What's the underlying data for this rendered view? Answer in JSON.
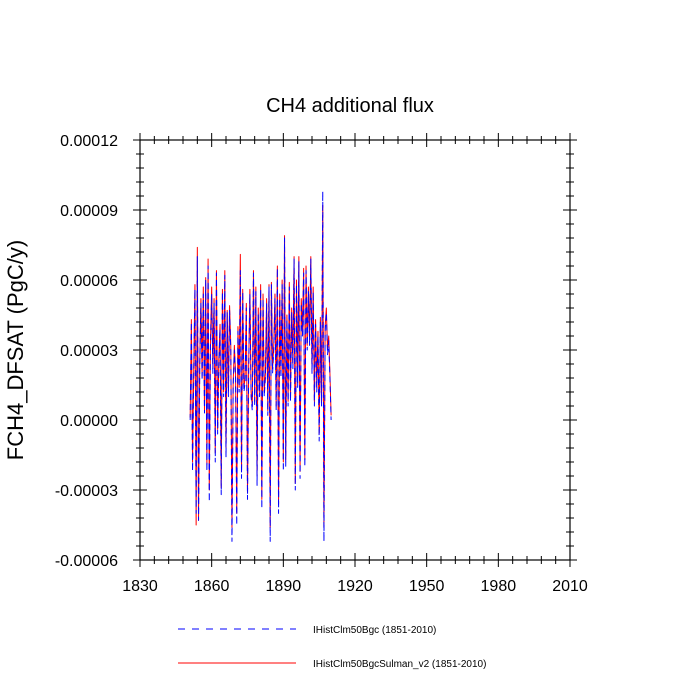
{
  "chart_data": {
    "type": "line",
    "title": "CH4 additional flux",
    "ylabel": "FCH4_DFSAT  (PgC/y)",
    "xlabel": "",
    "xlim": [
      1830,
      2010
    ],
    "ylim": [
      -6e-05,
      0.00012
    ],
    "x_ticks": [
      1830,
      1860,
      1890,
      1920,
      1950,
      1980,
      2010
    ],
    "y_ticks": [
      -6e-05,
      -3e-05,
      0.0,
      3e-05,
      6e-05,
      9e-05,
      0.00012
    ],
    "x_tick_labels": [
      "1830",
      "1860",
      "1890",
      "1920",
      "1950",
      "1980",
      "2010"
    ],
    "y_tick_labels": [
      "-0.00006",
      "-0.00003",
      "0.00000",
      "0.00003",
      "0.00006",
      "0.00009",
      "0.00012"
    ],
    "grid": false,
    "legend_position": "bottom",
    "x_start": 1851,
    "x_step": 0.5,
    "series": [
      {
        "name": "IHistClm50Bgc (1851-2010)",
        "color": "#0000ff",
        "dash": "dashed",
        "values": [
          0.0,
          4.2e-05,
          -2.2e-05,
          2e-05,
          5.6e-05,
          -4e-05,
          7e-05,
          -4.3e-05,
          2.2e-05,
          5e-05,
          1.7e-05,
          5.4e-05,
          3e-06,
          6e-05,
          -2.2e-05,
          6.6e-05,
          -3.5e-05,
          3.2e-05,
          5.4e-05,
          2e-05,
          5e-05,
          -1.8e-05,
          6.3e-05,
          -6e-06,
          2.4e-05,
          3.9e-05,
          -3.2e-05,
          5.5e-05,
          1e-05,
          6.2e-05,
          -1.6e-05,
          4.6e-05,
          1e-05,
          4.7e-05,
          3e-05,
          -5.2e-05,
          1.4e-05,
          3e-05,
          1.8e-05,
          -4.5e-05,
          3.8e-05,
          1.2e-05,
          6.4e-05,
          -2.5e-05,
          5.5e-05,
          1.2e-05,
          1.6e-05,
          4.8e-05,
          -3.4e-05,
          2.2e-05,
          5.4e-05,
          1e-05,
          4e-06,
          6.3e-05,
          6e-06,
          5.5e-05,
          -2.8e-05,
          4.6e-05,
          1e-05,
          5.6e-05,
          -3.8e-05,
          5.2e-05,
          1e-05,
          1.8e-05,
          5e-05,
          2e-06,
          5.7e-05,
          -5.2e-05,
          5.8e-05,
          2e-05,
          3e-05,
          5.2e-05,
          4e-06,
          6.5e-05,
          -4e-05,
          5.2e-05,
          1.8e-05,
          5.8e-05,
          -2.2e-05,
          7.8e-05,
          -2e-05,
          4.3e-05,
          6e-06,
          5.7e-05,
          8e-06,
          4.6e-05,
          2.2e-05,
          6.9e-05,
          -3e-05,
          5.8e-05,
          1.4e-05,
          6.8e-05,
          -2.5e-05,
          5e-05,
          3.6e-05,
          6.3e-05,
          -2e-05,
          6.4e-05,
          3e-05,
          5.5e-05,
          3.2e-05,
          6.9e-05,
          2e-05,
          5.5e-05,
          6e-06,
          4.1e-05,
          1.2e-05,
          3.6e-05,
          -9e-06,
          4.2e-05,
          6e-06,
          9.8e-05,
          -5.2e-05,
          3.8e-05,
          4.6e-05,
          2.8e-05,
          3.4e-05,
          1.8e-05,
          0.0
        ]
      },
      {
        "name": "IHistClm50BgcSulman_v2 (1851-2010)",
        "color": "#ff0000",
        "dash": "solid",
        "values": [
          1e-06,
          4.3e-05,
          -1.8e-05,
          2.2e-05,
          5.8e-05,
          -4.5e-05,
          7.4e-05,
          -4.3e-05,
          2.4e-05,
          5.2e-05,
          1.9e-05,
          5.7e-05,
          4e-06,
          6.1e-05,
          -1.9e-05,
          6.9e-05,
          -3e-05,
          3.4e-05,
          5.7e-05,
          2.2e-05,
          5.2e-05,
          -1.4e-05,
          6.4e-05,
          -4e-06,
          2.6e-05,
          4.1e-05,
          -2.9e-05,
          5.6e-05,
          1.2e-05,
          6.4e-05,
          -1.2e-05,
          4.7e-05,
          1.2e-05,
          4.9e-05,
          3.2e-05,
          -4.6e-05,
          1.6e-05,
          3.2e-05,
          2e-05,
          -4e-05,
          4e-05,
          1.4e-05,
          7.1e-05,
          -2.2e-05,
          5.6e-05,
          1.4e-05,
          1.8e-05,
          5e-05,
          -3.1e-05,
          2.4e-05,
          5.6e-05,
          1.2e-05,
          6e-06,
          6.4e-05,
          8e-06,
          5.7e-05,
          -2.4e-05,
          4.8e-05,
          1.2e-05,
          5.8e-05,
          -3.4e-05,
          5.4e-05,
          1.2e-05,
          2e-05,
          5.2e-05,
          4e-06,
          5.8e-05,
          -4.6e-05,
          5.9e-05,
          2.2e-05,
          3.2e-05,
          5.4e-05,
          6e-06,
          6.6e-05,
          -3.6e-05,
          5.4e-05,
          2e-05,
          6e-05,
          -1.8e-05,
          7.9e-05,
          -1.7e-05,
          4.5e-05,
          8e-06,
          5.9e-05,
          1e-05,
          4.8e-05,
          2.4e-05,
          7e-05,
          -2.7e-05,
          6e-05,
          1.6e-05,
          7e-05,
          -2.2e-05,
          5.2e-05,
          3.8e-05,
          6.5e-05,
          -1.7e-05,
          6.6e-05,
          3.2e-05,
          5.7e-05,
          3.4e-05,
          7e-05,
          2.2e-05,
          5.7e-05,
          8e-06,
          4.3e-05,
          1.4e-05,
          3.8e-05,
          -6e-06,
          4.4e-05,
          8e-06,
          9.2e-05,
          -4.6e-05,
          4e-05,
          4.8e-05,
          3e-05,
          3.6e-05,
          2e-05,
          2e-06
        ]
      }
    ]
  }
}
